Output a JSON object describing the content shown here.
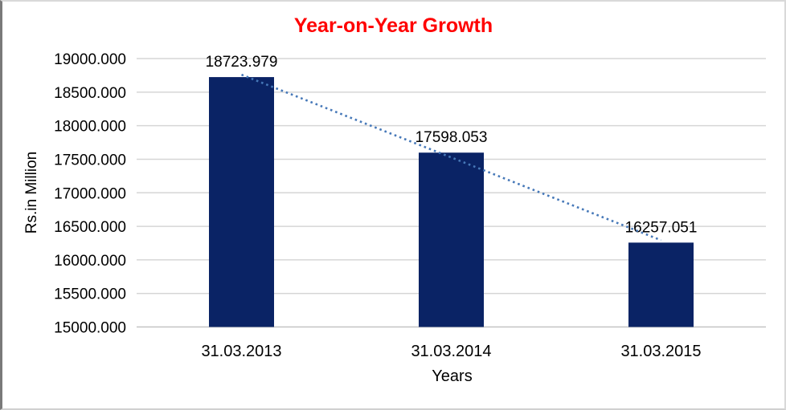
{
  "chart_data": {
    "type": "bar",
    "title": "Year-on-Year Growth",
    "title_color": "#ff0000",
    "xlabel": "Years",
    "ylabel": "Rs.in Million",
    "categories": [
      "31.03.2013",
      "31.03.2014",
      "31.03.2015"
    ],
    "values": [
      18723.979,
      17598.053,
      16257.051
    ],
    "data_labels": [
      "18723.979",
      "17598.053",
      "16257.051"
    ],
    "ylim": [
      15000,
      19000
    ],
    "ytick_step": 500,
    "ytick_labels": [
      "15000.000",
      "15500.000",
      "16000.000",
      "16500.000",
      "17000.000",
      "17500.000",
      "18000.000",
      "18500.000",
      "19000.000"
    ],
    "grid": true,
    "legend": "none",
    "trendline": {
      "type": "linear",
      "style": "dotted"
    },
    "colors": {
      "bar": "#0a2365",
      "trendline": "#4678b8",
      "gridline": "#d6d6d6",
      "axis_line": "#c3c3c3",
      "text": "#000000"
    }
  }
}
